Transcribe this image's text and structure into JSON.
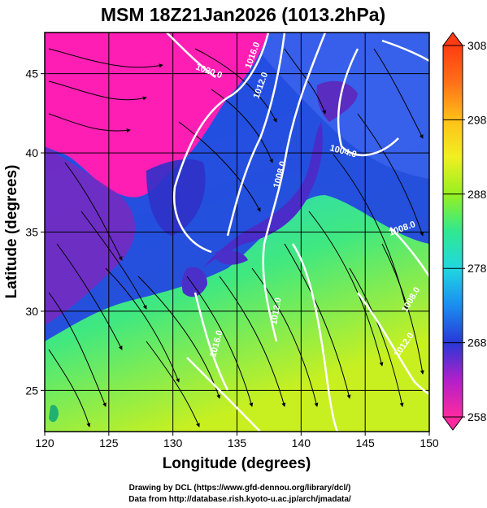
{
  "title": "MSM 18Z21Jan2026 (1013.2hPa)",
  "axes": {
    "xlabel": "Longitude (degrees)",
    "ylabel": "Latitude (degrees)",
    "xticks": [
      "120",
      "125",
      "130",
      "135",
      "140",
      "145",
      "150"
    ],
    "yticks": [
      "25",
      "30",
      "35",
      "40",
      "45"
    ],
    "xlim": [
      120,
      150
    ],
    "ylim": [
      22.4,
      47.6
    ]
  },
  "colorbar": {
    "ticks": [
      "308",
      "298",
      "288",
      "278",
      "268",
      "258"
    ],
    "range": [
      258,
      308
    ],
    "colors": [
      "#ff2aa0",
      "#b020c8",
      "#2838d8",
      "#1c8cf0",
      "#20d8e0",
      "#30e890",
      "#98f020",
      "#f0f020",
      "#ffa018",
      "#ff3c14"
    ]
  },
  "isobar_labels": [
    "1020.0",
    "1016.0",
    "1012.0",
    "1008.0",
    "1004.0",
    "1008.0",
    "1012.0",
    "1008.0",
    "1012.0",
    "1016.0"
  ],
  "credits": {
    "line1": "Drawing by DCL (https://www.gfd-dennou.org/library/dcl/)",
    "line2": "Data from http://database.rish.kyoto-u.ac.jp/arch/jmadata/"
  }
}
